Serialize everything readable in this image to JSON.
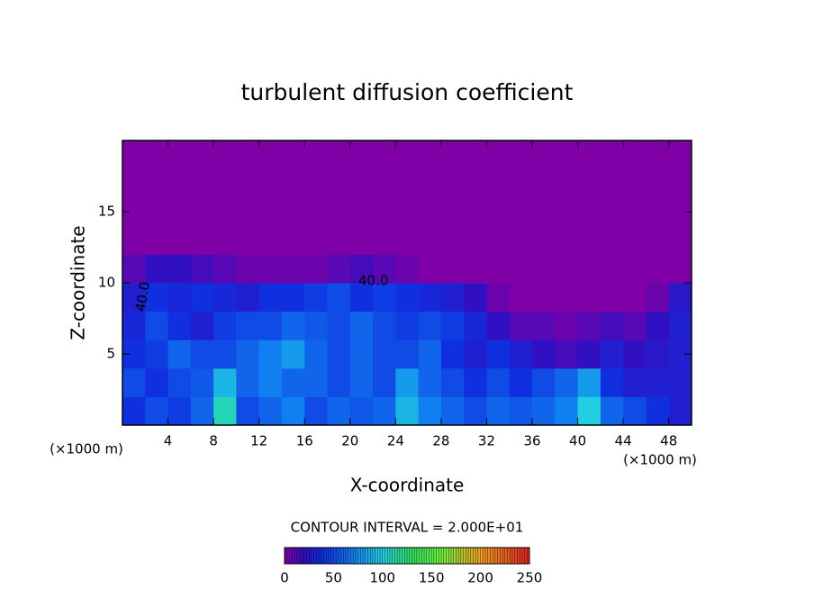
{
  "chart_data": {
    "type": "heatmap",
    "title": "turbulent diffusion coefficient",
    "x_label": "X-coordinate",
    "y_label": "Z-coordinate",
    "x_unit_left": "(×1000 m)",
    "x_unit_right": "(×1000 m)",
    "contour_interval": "CONTOUR INTERVAL = 2.000E+01",
    "annotations": [
      "40.0",
      "40.0"
    ],
    "xlim": [
      0,
      50
    ],
    "ylim": [
      0,
      20
    ],
    "xticks": [
      4,
      8,
      12,
      16,
      20,
      24,
      28,
      32,
      36,
      40,
      44,
      48
    ],
    "yticks": [
      5,
      10,
      15
    ],
    "x_edges": [
      0,
      2,
      4,
      6,
      8,
      10,
      12,
      14,
      16,
      18,
      20,
      22,
      24,
      26,
      28,
      30,
      32,
      34,
      36,
      38,
      40,
      42,
      44,
      46,
      48,
      50
    ],
    "y_edges": [
      0,
      2,
      4,
      6,
      8,
      10,
      12,
      14,
      16,
      18,
      20
    ],
    "z": [
      [
        40,
        50,
        45,
        60,
        110,
        50,
        60,
        70,
        50,
        60,
        55,
        60,
        90,
        70,
        60,
        50,
        60,
        55,
        60,
        70,
        100,
        60,
        50,
        40,
        30
      ],
      [
        50,
        40,
        50,
        55,
        90,
        60,
        70,
        60,
        60,
        50,
        60,
        50,
        80,
        60,
        50,
        40,
        50,
        40,
        50,
        60,
        80,
        40,
        30,
        30,
        30
      ],
      [
        40,
        45,
        60,
        50,
        50,
        60,
        70,
        80,
        60,
        50,
        60,
        50,
        50,
        60,
        40,
        30,
        40,
        30,
        20,
        15,
        20,
        30,
        20,
        25,
        30
      ],
      [
        35,
        50,
        40,
        30,
        45,
        50,
        50,
        60,
        55,
        50,
        60,
        50,
        45,
        50,
        45,
        35,
        20,
        10,
        10,
        5,
        10,
        15,
        10,
        20,
        30
      ],
      [
        30,
        40,
        35,
        40,
        35,
        30,
        40,
        40,
        45,
        50,
        40,
        45,
        40,
        35,
        30,
        20,
        5,
        0,
        0,
        0,
        0,
        0,
        0,
        5,
        25
      ],
      [
        10,
        20,
        20,
        15,
        10,
        5,
        5,
        5,
        5,
        10,
        15,
        10,
        5,
        0,
        0,
        0,
        0,
        0,
        0,
        0,
        0,
        0,
        0,
        0,
        0
      ],
      [
        0,
        0,
        0,
        0,
        0,
        0,
        0,
        0,
        0,
        0,
        0,
        0,
        0,
        0,
        0,
        0,
        0,
        0,
        0,
        0,
        0,
        0,
        0,
        0,
        0
      ],
      [
        0,
        0,
        0,
        0,
        0,
        0,
        0,
        0,
        0,
        0,
        0,
        0,
        0,
        0,
        0,
        0,
        0,
        0,
        0,
        0,
        0,
        0,
        0,
        0,
        0
      ],
      [
        0,
        0,
        0,
        0,
        0,
        0,
        0,
        0,
        0,
        0,
        0,
        0,
        0,
        0,
        0,
        0,
        0,
        0,
        0,
        0,
        0,
        0,
        0,
        0,
        0
      ],
      [
        0,
        0,
        0,
        0,
        0,
        0,
        0,
        0,
        0,
        0,
        0,
        0,
        0,
        0,
        0,
        0,
        0,
        0,
        0,
        0,
        0,
        0,
        0,
        0,
        0
      ]
    ],
    "clim": [
      0,
      250
    ],
    "colorbar_ticks": [
      0,
      50,
      100,
      150,
      200,
      250
    ],
    "colorscale": [
      [
        0,
        "#8000a8"
      ],
      [
        20,
        "#3010c0"
      ],
      [
        40,
        "#1030e0"
      ],
      [
        70,
        "#1080f0"
      ],
      [
        100,
        "#20d0e0"
      ],
      [
        130,
        "#30e060"
      ],
      [
        160,
        "#70f040"
      ],
      [
        200,
        "#f0a020"
      ],
      [
        250,
        "#e02020"
      ]
    ]
  }
}
